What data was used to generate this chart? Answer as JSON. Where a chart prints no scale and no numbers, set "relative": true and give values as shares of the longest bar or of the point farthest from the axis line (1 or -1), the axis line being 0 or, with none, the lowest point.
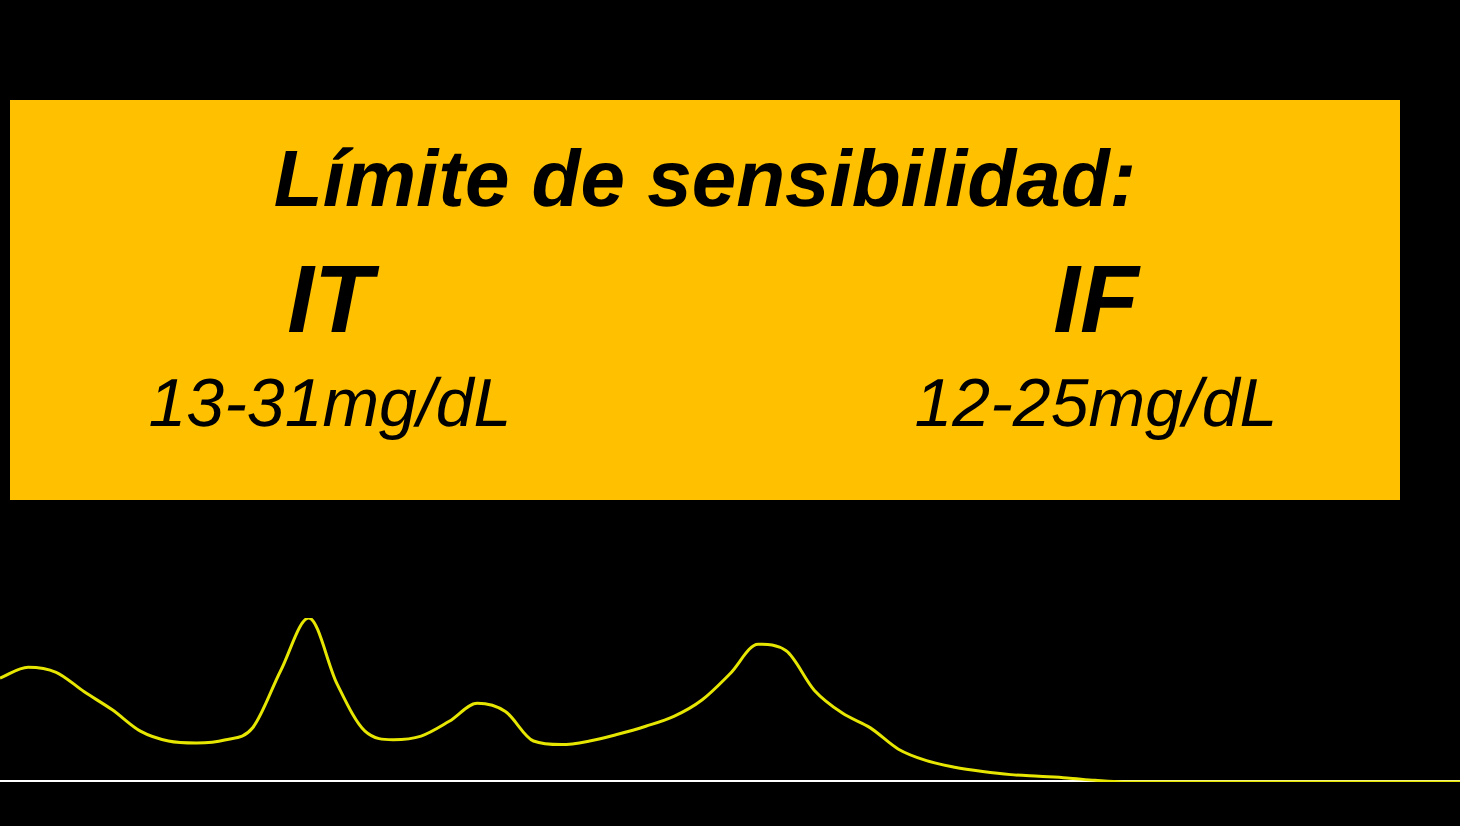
{
  "chart_data": {
    "type": "line",
    "title": "Límite de sensibilidad:",
    "annotations": [
      "IT",
      "13-31mg/dL",
      "IF",
      "12-25mg/dL"
    ],
    "relative": true,
    "tick_labels": false,
    "marker": "none",
    "categories": [
      null,
      null,
      null,
      null,
      null,
      null,
      null,
      null,
      null,
      null,
      null,
      null,
      null,
      null,
      null,
      null,
      null,
      null,
      null,
      null,
      null,
      null,
      null,
      null,
      null,
      null,
      null,
      null,
      null,
      null,
      null,
      null,
      null,
      null,
      null,
      null,
      null,
      null,
      null,
      null,
      null,
      null,
      null,
      null,
      null,
      null,
      null,
      null,
      null,
      null,
      null,
      null,
      null
    ],
    "series": [
      {
        "color": "#e6e600",
        "values": [
          0.634,
          0.7,
          0.669,
          0.55,
          0.44,
          0.31,
          0.25,
          0.238,
          0.256,
          0.331,
          0.68,
          1.0,
          0.6,
          0.31,
          0.258,
          0.28,
          0.37,
          0.48,
          0.43,
          0.25,
          0.228,
          0.25,
          0.291,
          0.34,
          0.4,
          0.5,
          0.66,
          0.84,
          0.8,
          0.56,
          0.42,
          0.33,
          0.2,
          0.13,
          0.09,
          0.064,
          0.045,
          0.035,
          0.025,
          0.01,
          0,
          0,
          0,
          0,
          0,
          0,
          0,
          0,
          0,
          0,
          0,
          0,
          0
        ]
      }
    ]
  }
}
